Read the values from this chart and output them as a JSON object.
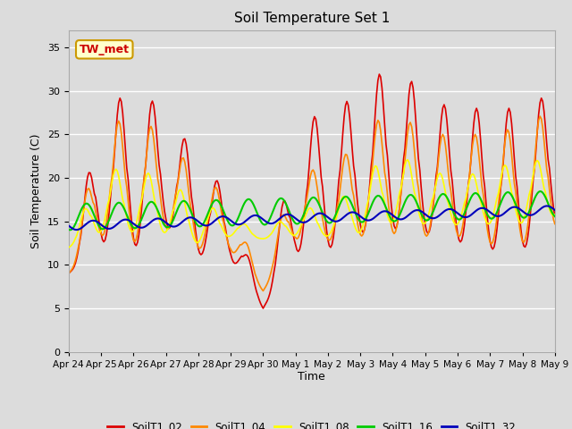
{
  "title": "Soil Temperature Set 1",
  "xlabel": "Time",
  "ylabel": "Soil Temperature (C)",
  "ylim": [
    0,
    37
  ],
  "yticks": [
    0,
    5,
    10,
    15,
    20,
    25,
    30,
    35
  ],
  "annotation_text": "TW_met",
  "annotation_box_facecolor": "#ffffcc",
  "annotation_box_edgecolor": "#cc9900",
  "series_colors": {
    "SoilT1_02": "#dd0000",
    "SoilT1_04": "#ff8800",
    "SoilT1_08": "#ffff00",
    "SoilT1_16": "#00cc00",
    "SoilT1_32": "#0000bb"
  },
  "background_color": "#dcdcdc",
  "grid_color": "#ffffff",
  "xtick_labels": [
    "Apr 24",
    "Apr 25",
    "Apr 26",
    "Apr 27",
    "Apr 28",
    "Apr 29",
    "Apr 30",
    "May 1",
    "May 2",
    "May 3",
    "May 4",
    "May 5",
    "May 6",
    "May 7",
    "May 8",
    "May 9"
  ],
  "line_width": 1.2
}
